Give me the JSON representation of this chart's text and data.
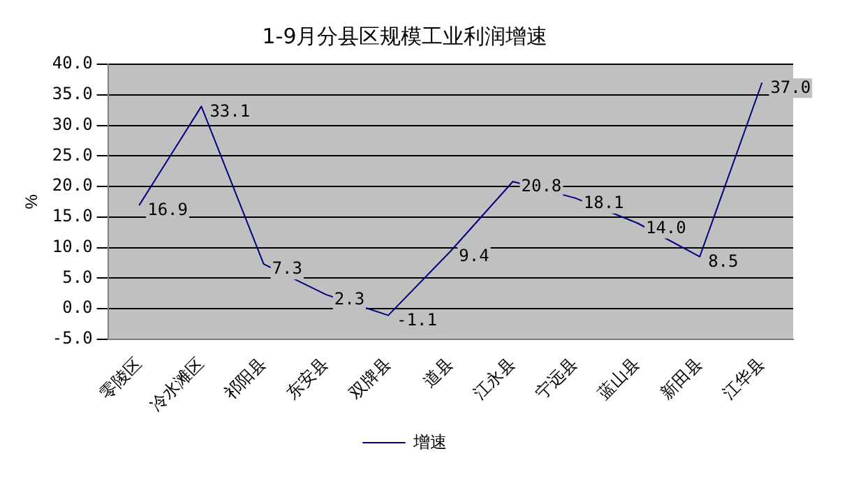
{
  "chart_data": {
    "type": "line",
    "title": "1-9月分县区规模工业利润增速",
    "ylabel": "%",
    "categories": [
      "零陵区",
      "冷水滩区",
      "祁阳县",
      "东安县",
      "双牌县",
      "道县",
      "江永县",
      "宁远县",
      "蓝山县",
      "新田县",
      "江华县"
    ],
    "series": [
      {
        "name": "增速",
        "color": "#000080",
        "values": [
          16.9,
          33.1,
          7.3,
          2.3,
          -1.1,
          9.4,
          20.8,
          18.1,
          14.0,
          8.5,
          37.0
        ],
        "value_labels": [
          "16.9",
          "33.1",
          "7.3",
          "2.3",
          "-1.1",
          "9.4",
          "20.8",
          "18.1",
          "14.0",
          "8.5",
          "37.0"
        ]
      }
    ],
    "ylim": [
      -5,
      40
    ],
    "yticks": [
      {
        "value": -5,
        "label": "-5.0"
      },
      {
        "value": 0,
        "label": "0.0"
      },
      {
        "value": 5,
        "label": "5.0"
      },
      {
        "value": 10,
        "label": "10.0"
      },
      {
        "value": 15,
        "label": "15.0"
      },
      {
        "value": 20,
        "label": "20.0"
      },
      {
        "value": 25,
        "label": "25.0"
      },
      {
        "value": 30,
        "label": "30.0"
      },
      {
        "value": 35,
        "label": "35.0"
      },
      {
        "value": 40,
        "label": "40.0"
      }
    ],
    "grid": "y",
    "legend": "bottom",
    "marker": "none",
    "line_style": "solid"
  }
}
